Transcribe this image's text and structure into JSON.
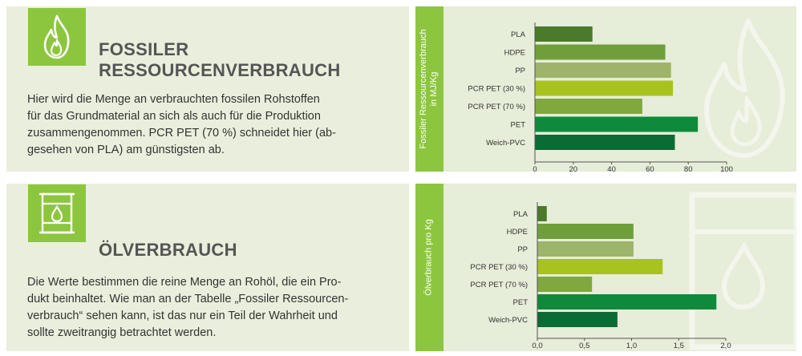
{
  "colors": {
    "accent_green": "#8cc63f",
    "panel_bg": "#e9efdc",
    "heading": "#555555",
    "bar_palette": [
      "#4a7a2a",
      "#6f9e3a",
      "#9db46a",
      "#a8c21e",
      "#7fa83e",
      "#0f8a3c",
      "#0b6b35"
    ]
  },
  "sections": [
    {
      "icon": "flame-icon",
      "title_line1": "FOSSILER",
      "title_line2": "RESSOURCENVERBRAUCH",
      "text_lines": [
        "Hier wird die Menge an verbrauchten fossilen Rohstoffen",
        "für das Grundmaterial an sich als auch für die Produktion",
        "zusammengenommen. PCR PET (70 %) schneidet hier (ab-",
        "gesehen von PLA) am günstigsten ab."
      ]
    },
    {
      "icon": "oil-barrel-icon",
      "title_line1": "ÖLVERBRAUCH",
      "text_lines": [
        "Die Werte bestimmen die reine Menge an Rohöl, die ein Pro-",
        "dukt beinhaltet. Wie man an der Tabelle „Fossiler Ressourcen-",
        "verbrauch“ sehen kann, ist das nur ein Teil der Wahrheit und",
        "sollte zweitrangig betrachtet werden."
      ]
    }
  ],
  "chart_data": [
    {
      "type": "bar",
      "orientation": "horizontal",
      "ylabel": "Fossiler Ressourcenverbrauch\nin MJ/Kg",
      "categories": [
        "PLA",
        "HDPE",
        "PP",
        "PCR PET (30 %)",
        "PCR PET (70 %)",
        "PET",
        "Weich-PVC"
      ],
      "values": [
        30,
        68,
        71,
        72,
        56,
        85,
        73
      ],
      "xlim": [
        0,
        100
      ],
      "xticks": [
        "0",
        "20",
        "40",
        "60",
        "80",
        "100"
      ],
      "xtick_values": [
        0,
        20,
        40,
        60,
        80,
        100
      ],
      "grid": false,
      "legend": "none"
    },
    {
      "type": "bar",
      "orientation": "horizontal",
      "ylabel": "Ölverbrauch pro Kg",
      "categories": [
        "PLA",
        "HDPE",
        "PP",
        "PCR PET (30 %)",
        "PCR PET (70 %)",
        "PET",
        "Weich-PVC"
      ],
      "values": [
        0.1,
        1.02,
        1.02,
        1.33,
        0.58,
        1.9,
        0.85
      ],
      "xlim": [
        0,
        2
      ],
      "xticks": [
        "0,0",
        "0,5",
        "1,0",
        "1,5",
        "2,0"
      ],
      "xtick_values": [
        0,
        0.5,
        1,
        1.5,
        2
      ],
      "grid": false,
      "legend": "none"
    }
  ]
}
